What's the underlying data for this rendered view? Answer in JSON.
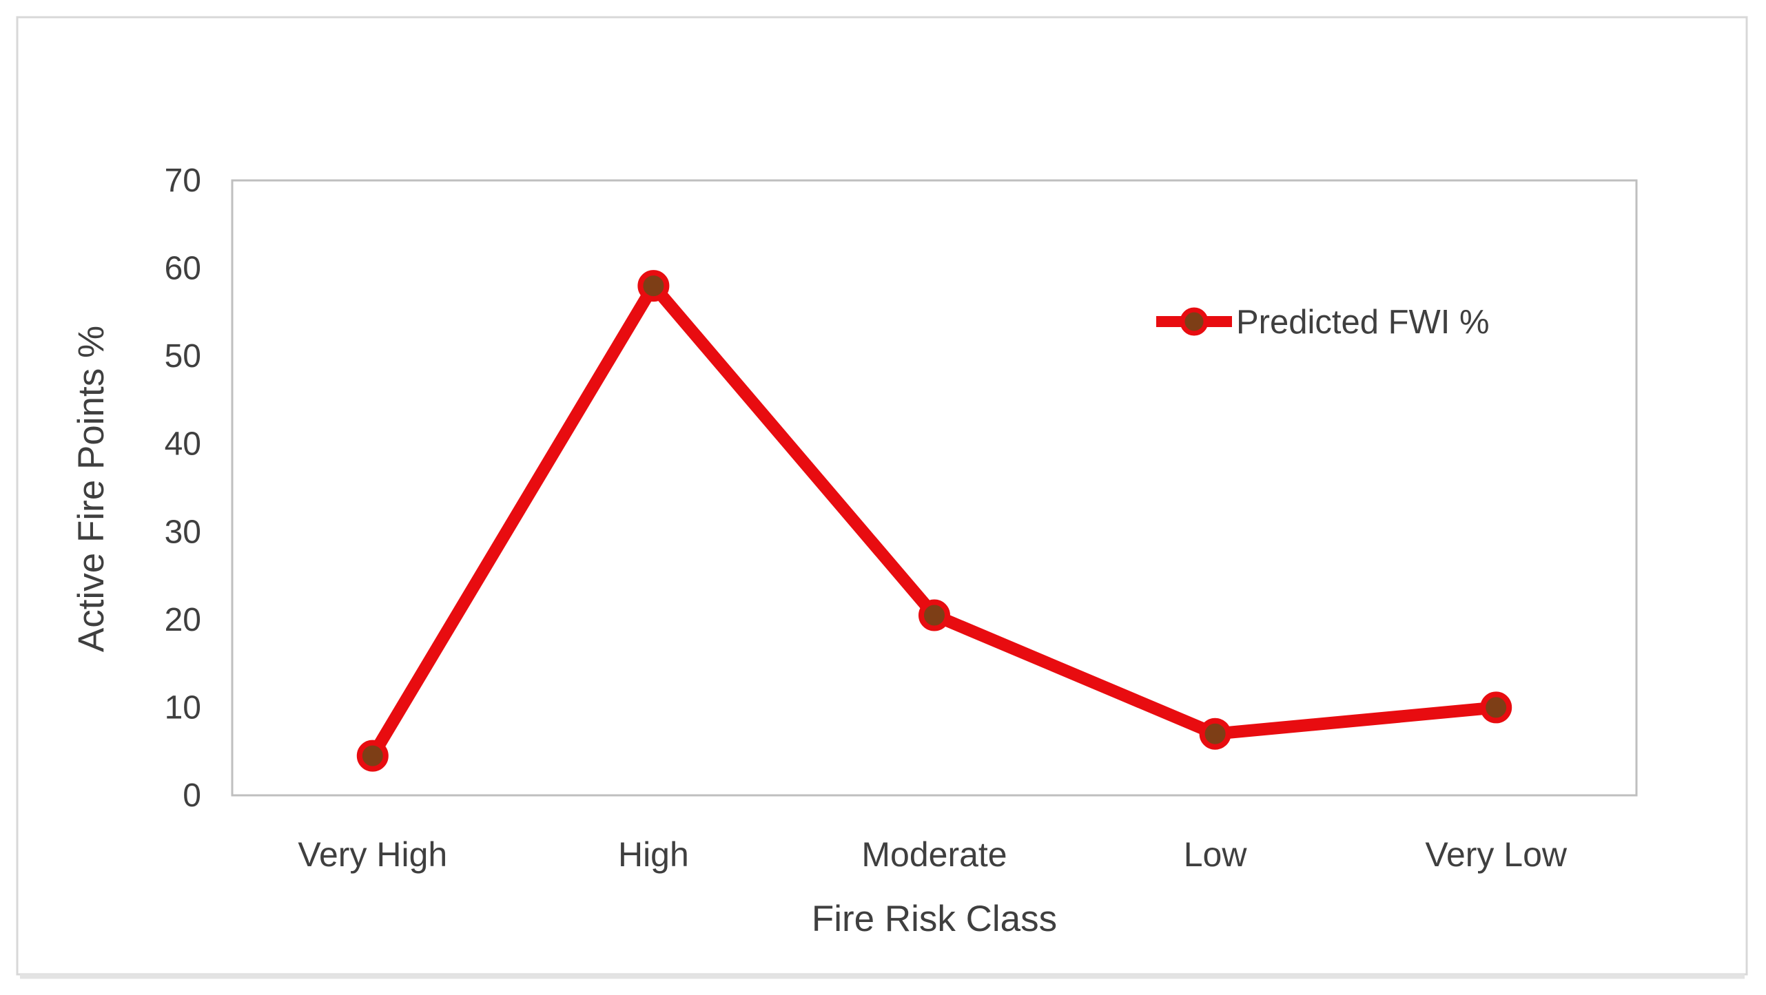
{
  "figure": {
    "background_color": "#ffffff",
    "frame_border_color": "#d8d8d8",
    "frame_shadow_color": "#e3e3e3",
    "plot_border_color": "#bfbfbf",
    "axis_text_color": "#3f3f3f"
  },
  "chart_data": {
    "type": "line",
    "title": "",
    "xlabel": "Fire Risk Class",
    "ylabel": "Active Fire Points %",
    "categories": [
      "Very High",
      "High",
      "Moderate",
      "Low",
      "Very Low"
    ],
    "series": [
      {
        "name": "Predicted FWI %",
        "values": [
          4.5,
          58,
          20.5,
          7,
          10
        ],
        "line_color": "#e80c10",
        "marker_fill": "#7d3e16"
      }
    ],
    "ylim": [
      0,
      70
    ],
    "ytick_step": 10,
    "ytick_labels": [
      "0",
      "10",
      "20",
      "30",
      "40",
      "50",
      "60",
      "70"
    ],
    "grid": false,
    "legend_position": "inside-top-right"
  }
}
